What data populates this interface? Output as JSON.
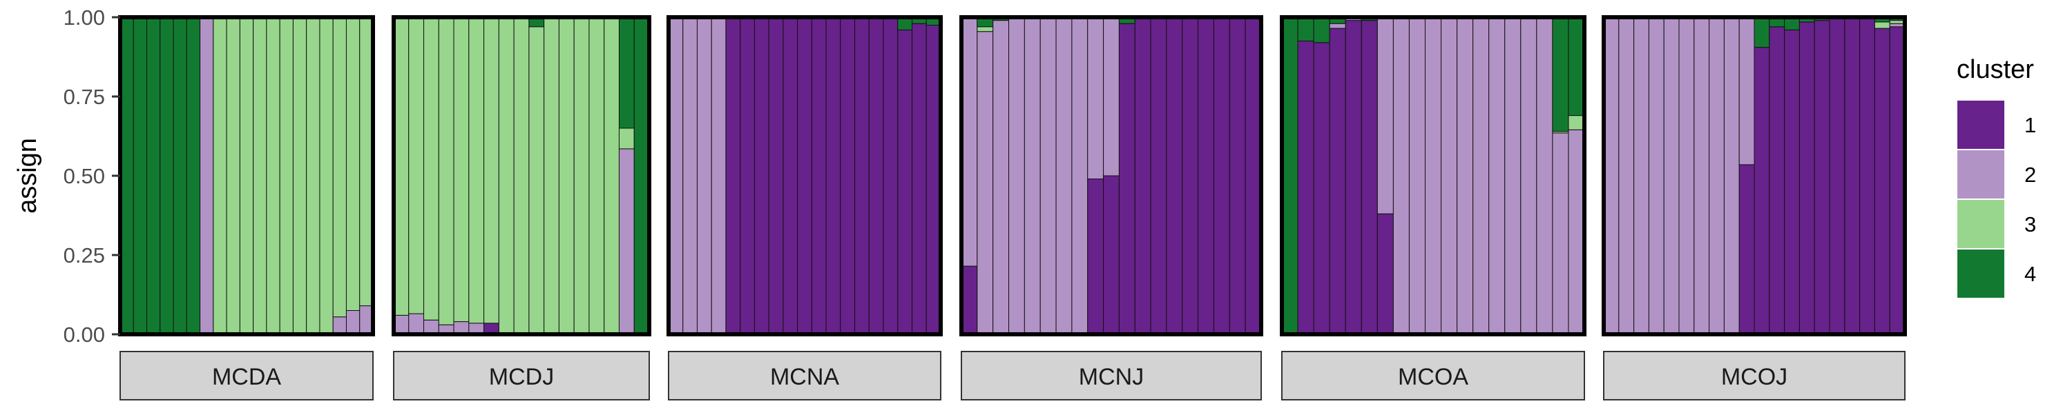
{
  "chart_data": {
    "type": "bar",
    "subtype": "stacked-100",
    "ylabel": "assign",
    "ylim": [
      0,
      1
    ],
    "y_ticks": [
      "0.00",
      "0.25",
      "0.50",
      "0.75",
      "1.00"
    ],
    "grid": false,
    "legend": {
      "title": "cluster",
      "position": "right",
      "entries": [
        {
          "key": "1",
          "label": "1",
          "color": "#67228b"
        },
        {
          "key": "2",
          "label": "2",
          "color": "#b293c6"
        },
        {
          "key": "3",
          "label": "3",
          "color": "#98d68d"
        },
        {
          "key": "4",
          "label": "4",
          "color": "#127a30"
        }
      ]
    },
    "panels": [
      {
        "label": "MCDA",
        "bars": [
          [
            0,
            0,
            0,
            1
          ],
          [
            0,
            0,
            0,
            1
          ],
          [
            0,
            0,
            0,
            1
          ],
          [
            0,
            0,
            0,
            1
          ],
          [
            0,
            0,
            0,
            1
          ],
          [
            0,
            0,
            0,
            1
          ],
          [
            0,
            1,
            0,
            0
          ],
          [
            0,
            0,
            1,
            0
          ],
          [
            0,
            0,
            1,
            0
          ],
          [
            0,
            0,
            1,
            0
          ],
          [
            0,
            0,
            1,
            0
          ],
          [
            0,
            0,
            1,
            0
          ],
          [
            0,
            0,
            1,
            0
          ],
          [
            0,
            0,
            1,
            0
          ],
          [
            0,
            0,
            1,
            0
          ],
          [
            0,
            0,
            1,
            0
          ],
          [
            0,
            0.055,
            0.945,
            0
          ],
          [
            0,
            0.075,
            0.925,
            0
          ],
          [
            0,
            0.09,
            0.91,
            0
          ]
        ]
      },
      {
        "label": "MCDJ",
        "bars": [
          [
            0,
            0.06,
            0.94,
            0
          ],
          [
            0,
            0.065,
            0.935,
            0
          ],
          [
            0,
            0.045,
            0.955,
            0
          ],
          [
            0,
            0.03,
            0.97,
            0
          ],
          [
            0,
            0.04,
            0.96,
            0
          ],
          [
            0,
            0.035,
            0.965,
            0
          ],
          [
            0.035,
            0,
            0.965,
            0
          ],
          [
            0,
            0,
            1,
            0
          ],
          [
            0,
            0,
            1,
            0
          ],
          [
            0,
            0,
            0.97,
            0.03
          ],
          [
            0,
            0,
            1,
            0
          ],
          [
            0,
            0,
            1,
            0
          ],
          [
            0,
            0,
            1,
            0
          ],
          [
            0,
            0,
            1,
            0
          ],
          [
            0,
            0,
            1,
            0
          ],
          [
            0,
            0.585,
            0.065,
            0.35
          ],
          [
            0,
            0,
            0,
            1
          ]
        ]
      },
      {
        "label": "MCNA",
        "bars": [
          [
            0,
            1,
            0,
            0
          ],
          [
            0,
            1,
            0,
            0
          ],
          [
            0,
            1,
            0,
            0
          ],
          [
            0,
            1,
            0,
            0
          ],
          [
            1,
            0,
            0,
            0
          ],
          [
            1,
            0,
            0,
            0
          ],
          [
            1,
            0,
            0,
            0
          ],
          [
            1,
            0,
            0,
            0
          ],
          [
            1,
            0,
            0,
            0
          ],
          [
            1,
            0,
            0,
            0
          ],
          [
            1,
            0,
            0,
            0
          ],
          [
            1,
            0,
            0,
            0
          ],
          [
            1,
            0,
            0,
            0
          ],
          [
            1,
            0,
            0,
            0
          ],
          [
            1,
            0,
            0,
            0
          ],
          [
            1,
            0,
            0,
            0
          ],
          [
            0.96,
            0,
            0,
            0.04
          ],
          [
            0.98,
            0,
            0,
            0.02
          ],
          [
            0.975,
            0,
            0,
            0.025
          ]
        ]
      },
      {
        "label": "MCNJ",
        "bars": [
          [
            0.215,
            0.785,
            0,
            0
          ],
          [
            0,
            0.955,
            0.015,
            0.03
          ],
          [
            0,
            0.99,
            0,
            0.01
          ],
          [
            0,
            1,
            0,
            0
          ],
          [
            0,
            1,
            0,
            0
          ],
          [
            0,
            1,
            0,
            0
          ],
          [
            0,
            1,
            0,
            0
          ],
          [
            0,
            1,
            0,
            0
          ],
          [
            0.49,
            0.51,
            0,
            0
          ],
          [
            0.5,
            0.5,
            0,
            0
          ],
          [
            0.98,
            0,
            0,
            0.02
          ],
          [
            1,
            0,
            0,
            0
          ],
          [
            1,
            0,
            0,
            0
          ],
          [
            1,
            0,
            0,
            0
          ],
          [
            1,
            0,
            0,
            0
          ],
          [
            1,
            0,
            0,
            0
          ],
          [
            1,
            0,
            0,
            0
          ],
          [
            1,
            0,
            0,
            0
          ],
          [
            1,
            0,
            0,
            0
          ]
        ]
      },
      {
        "label": "MCOA",
        "bars": [
          [
            0,
            0,
            0,
            1
          ],
          [
            0.925,
            0,
            0,
            0.075
          ],
          [
            0.92,
            0,
            0,
            0.08
          ],
          [
            0.965,
            0.015,
            0,
            0.02
          ],
          [
            0.99,
            0.01,
            0,
            0
          ],
          [
            0.99,
            0,
            0,
            0.01
          ],
          [
            0.38,
            0.62,
            0,
            0
          ],
          [
            0,
            1,
            0,
            0
          ],
          [
            0,
            1,
            0,
            0
          ],
          [
            0,
            1,
            0,
            0
          ],
          [
            0,
            1,
            0,
            0
          ],
          [
            0,
            1,
            0,
            0
          ],
          [
            0,
            1,
            0,
            0
          ],
          [
            0,
            1,
            0,
            0
          ],
          [
            0,
            1,
            0,
            0
          ],
          [
            0,
            1,
            0,
            0
          ],
          [
            0,
            1,
            0,
            0
          ],
          [
            0,
            0.635,
            0.005,
            0.36
          ],
          [
            0,
            0.645,
            0.045,
            0.31
          ]
        ]
      },
      {
        "label": "MCOJ",
        "bars": [
          [
            0,
            1,
            0,
            0
          ],
          [
            0,
            1,
            0,
            0
          ],
          [
            0,
            1,
            0,
            0
          ],
          [
            0,
            1,
            0,
            0
          ],
          [
            0,
            1,
            0,
            0
          ],
          [
            0,
            1,
            0,
            0
          ],
          [
            0,
            1,
            0,
            0
          ],
          [
            0,
            1,
            0,
            0
          ],
          [
            0,
            1,
            0,
            0
          ],
          [
            0.535,
            0.465,
            0,
            0
          ],
          [
            0.905,
            0,
            0,
            0.095
          ],
          [
            0.97,
            0,
            0,
            0.03
          ],
          [
            0.96,
            0,
            0,
            0.04
          ],
          [
            0.985,
            0,
            0,
            0.015
          ],
          [
            0.99,
            0,
            0,
            0.01
          ],
          [
            1,
            0,
            0,
            0
          ],
          [
            1,
            0,
            0,
            0
          ],
          [
            1,
            0,
            0,
            0
          ],
          [
            0.965,
            0,
            0.02,
            0.015
          ],
          [
            0.97,
            0.01,
            0.01,
            0.01
          ]
        ]
      }
    ]
  }
}
